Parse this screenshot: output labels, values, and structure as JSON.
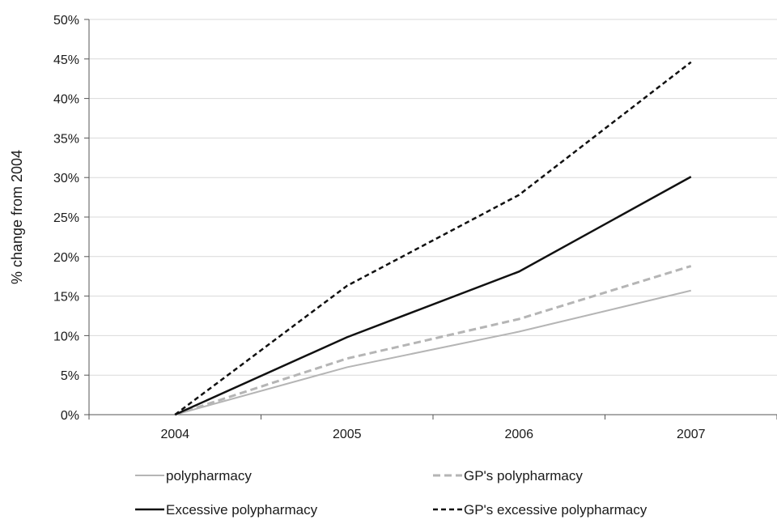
{
  "chart_data": {
    "type": "line",
    "title": "",
    "xlabel": "",
    "ylabel": "% change from 2004",
    "categories": [
      "2004",
      "2005",
      "2006",
      "2007"
    ],
    "ylim": [
      0,
      50
    ],
    "yticks": [
      0,
      5,
      10,
      15,
      20,
      25,
      30,
      35,
      40,
      45,
      50
    ],
    "ytick_labels": [
      "0%",
      "5%",
      "10%",
      "15%",
      "20%",
      "25%",
      "30%",
      "35%",
      "40%",
      "45%",
      "50%"
    ],
    "grid": true,
    "legend_position": "bottom",
    "series": [
      {
        "name": "polypharmacy",
        "values": [
          0,
          6,
          10.5,
          15.7
        ],
        "color": "#b5b5b5",
        "style": "solid"
      },
      {
        "name": "GP's polypharmacy",
        "values": [
          0,
          7.1,
          12.1,
          18.8
        ],
        "color": "#b5b5b5",
        "style": "dashed"
      },
      {
        "name": "Excessive polypharmacy",
        "values": [
          0,
          9.8,
          18.1,
          30.1
        ],
        "color": "#111111",
        "style": "solid"
      },
      {
        "name": "GP's excessive polypharmacy",
        "values": [
          0,
          16.3,
          27.8,
          44.6
        ],
        "color": "#111111",
        "style": "dashed"
      }
    ]
  }
}
